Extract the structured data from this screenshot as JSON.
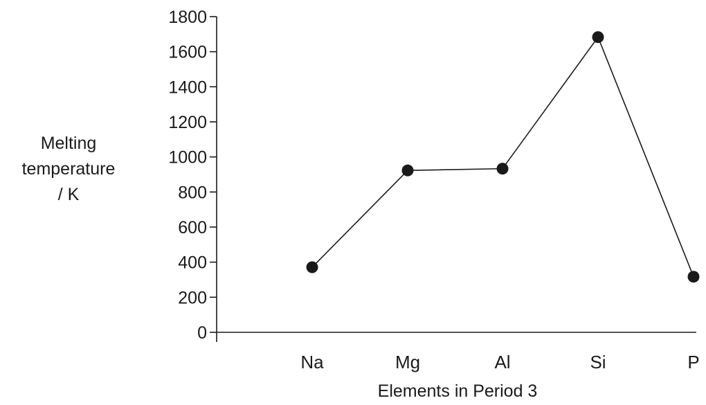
{
  "chart_data": {
    "type": "line",
    "title": "",
    "xlabel": "Elements in Period 3",
    "ylabel_lines": [
      "Melting",
      "temperature",
      "/ K"
    ],
    "categories": [
      "Na",
      "Mg",
      "Al",
      "Si",
      "P"
    ],
    "series": [
      {
        "values": [
          371,
          923,
          933,
          1683,
          317
        ]
      }
    ],
    "y_ticks": [
      0,
      200,
      400,
      600,
      800,
      1000,
      1200,
      1400,
      1600,
      1800
    ],
    "ylim": [
      0,
      1800
    ],
    "grid": false,
    "legend": "none",
    "colors": {
      "line": "#1a1a1a",
      "marker": "#1a1a1a",
      "axis": "#1a1a1a"
    }
  }
}
